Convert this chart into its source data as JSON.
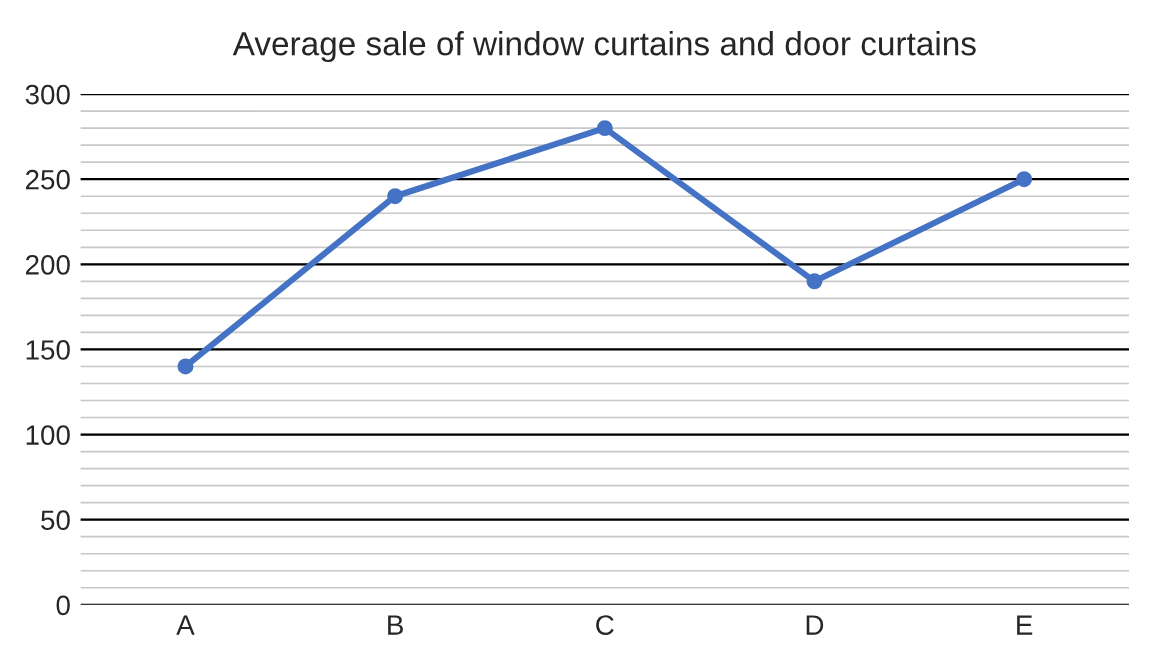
{
  "chart_data": {
    "type": "line",
    "title": "Average sale of window curtains and door curtains",
    "categories": [
      "A",
      "B",
      "C",
      "D",
      "E"
    ],
    "series": [
      {
        "color": "#4472c4",
        "values": [
          140,
          240,
          280,
          190,
          250
        ]
      }
    ],
    "ylim": [
      0,
      300
    ],
    "yticks": [
      0,
      50,
      100,
      150,
      200,
      250,
      300
    ],
    "grid": "y",
    "marker": "circle",
    "line_style": "solid",
    "legend": false
  }
}
